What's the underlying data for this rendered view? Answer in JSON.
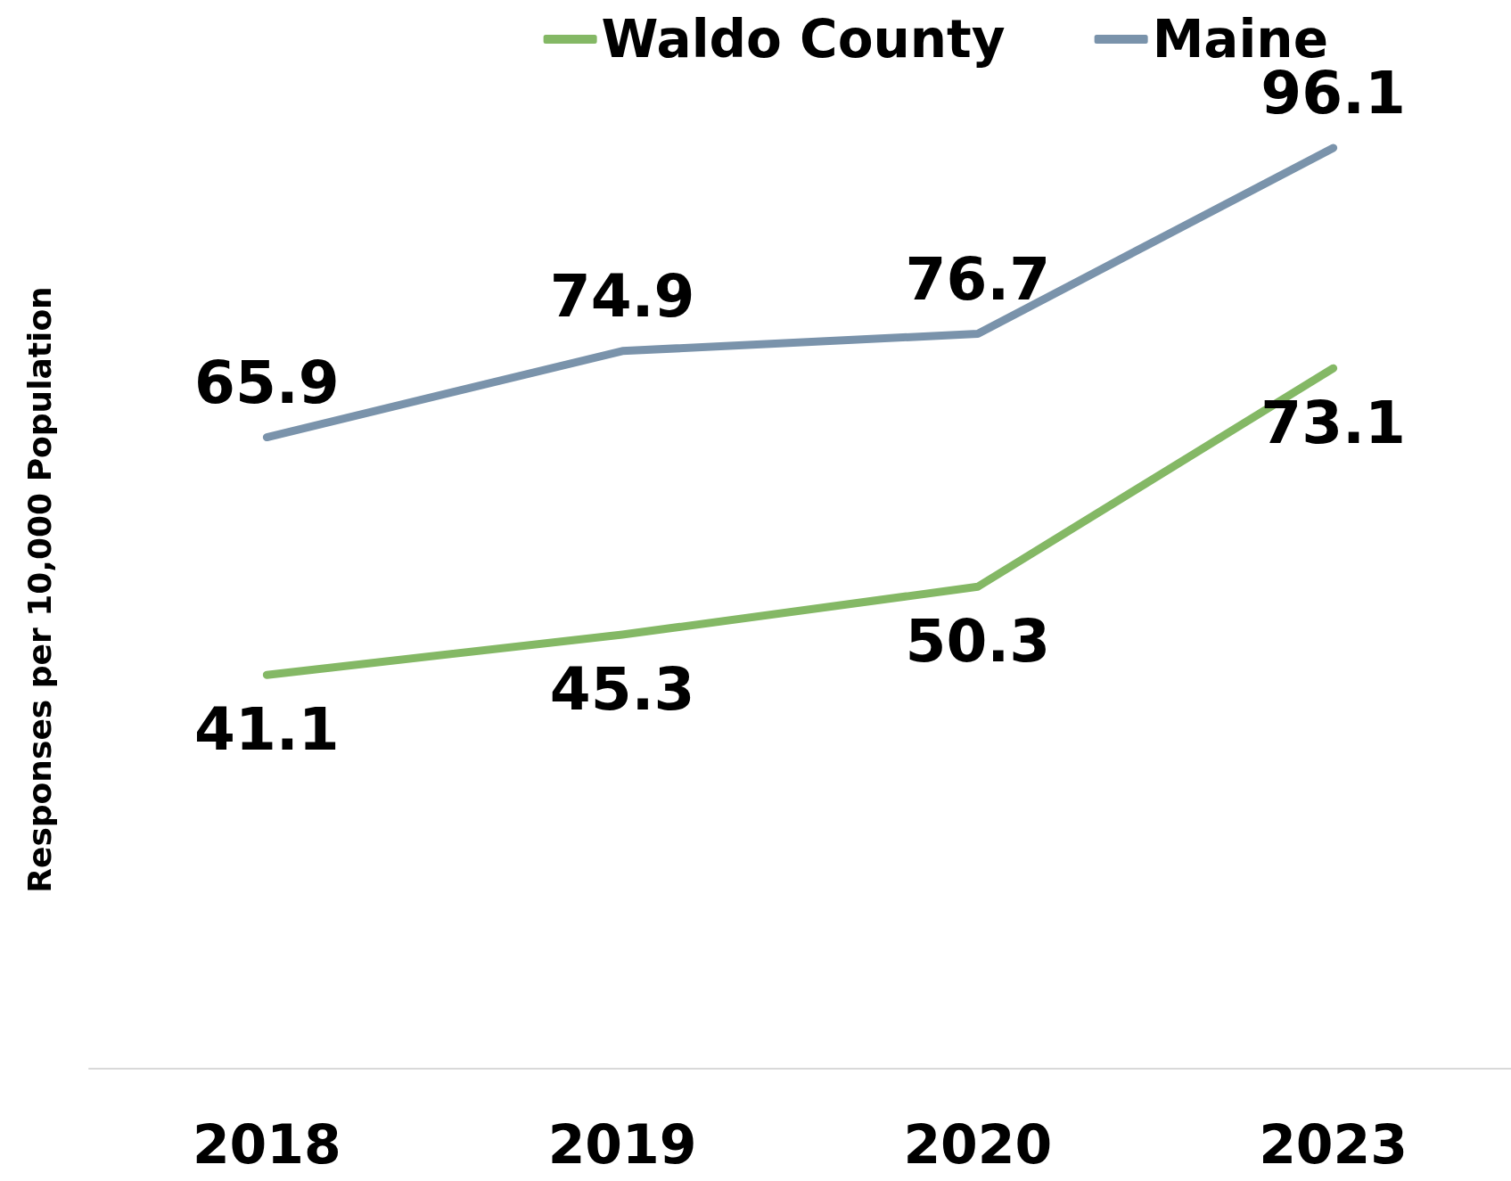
{
  "chart_data": {
    "type": "line",
    "ylabel": "Responses per 10,000 Population",
    "categories": [
      "2018",
      "2019",
      "2020",
      "2023"
    ],
    "series": [
      {
        "name": "Waldo County",
        "color": "#84b865",
        "values": [
          41.1,
          45.3,
          50.3,
          73.1
        ]
      },
      {
        "name": "Maine",
        "color": "#7a93ab",
        "values": [
          65.9,
          74.9,
          76.7,
          96.1
        ]
      }
    ],
    "data_labels": true,
    "legend": "top right",
    "grid": false,
    "marker": "none",
    "line_style": "solid",
    "tick_labels": "x"
  }
}
